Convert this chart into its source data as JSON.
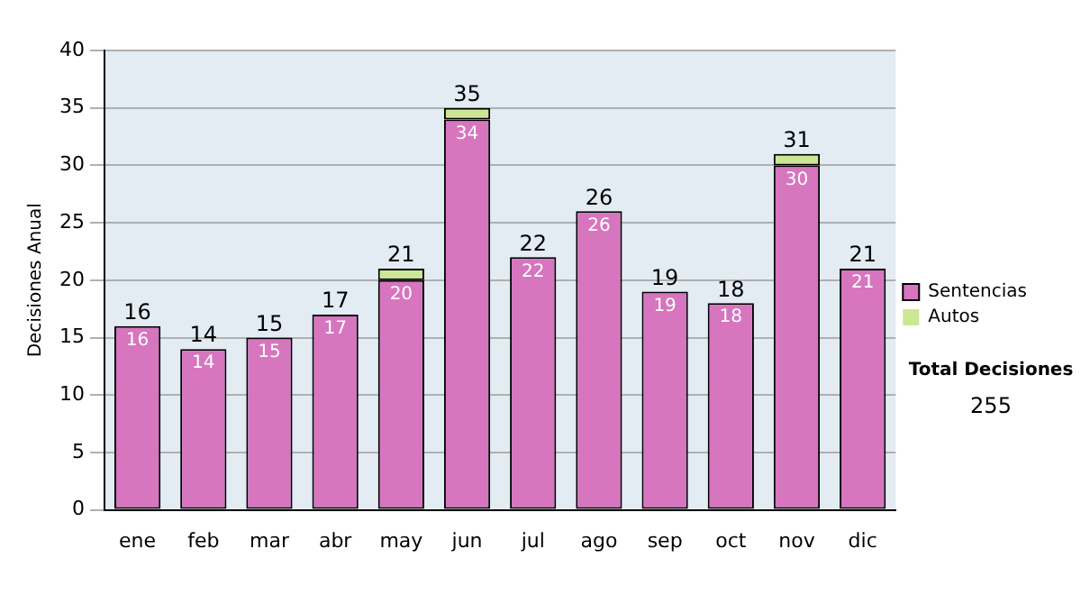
{
  "chart_data": {
    "type": "bar",
    "ylabel": "Decisiones Anual",
    "categories": [
      "ene",
      "feb",
      "mar",
      "abr",
      "may",
      "jun",
      "jul",
      "ago",
      "sep",
      "oct",
      "nov",
      "dic"
    ],
    "series": [
      {
        "name": "Sentencias",
        "color": "#d775bf",
        "values": [
          16,
          14,
          15,
          17,
          20,
          34,
          22,
          26,
          19,
          18,
          30,
          21
        ],
        "value_labels": [
          "16",
          "14",
          "15",
          "17",
          "20",
          "34",
          "22",
          "26",
          "19",
          "18",
          "30",
          "21"
        ]
      },
      {
        "name": "Autos",
        "color": "#cce694",
        "values": [
          0,
          0,
          0,
          0,
          1,
          1,
          0,
          0,
          0,
          0,
          1,
          0
        ]
      }
    ],
    "stacked": true,
    "totals": [
      "16",
      "14",
      "15",
      "17",
      "21",
      "35",
      "22",
      "26",
      "19",
      "18",
      "31",
      "21"
    ],
    "ylim": [
      0,
      40
    ],
    "yticks": [
      0,
      5,
      10,
      15,
      20,
      25,
      30,
      35,
      40
    ],
    "grid": "y",
    "legend": "right",
    "annotations": [
      "Total Decisiones",
      "255"
    ]
  }
}
